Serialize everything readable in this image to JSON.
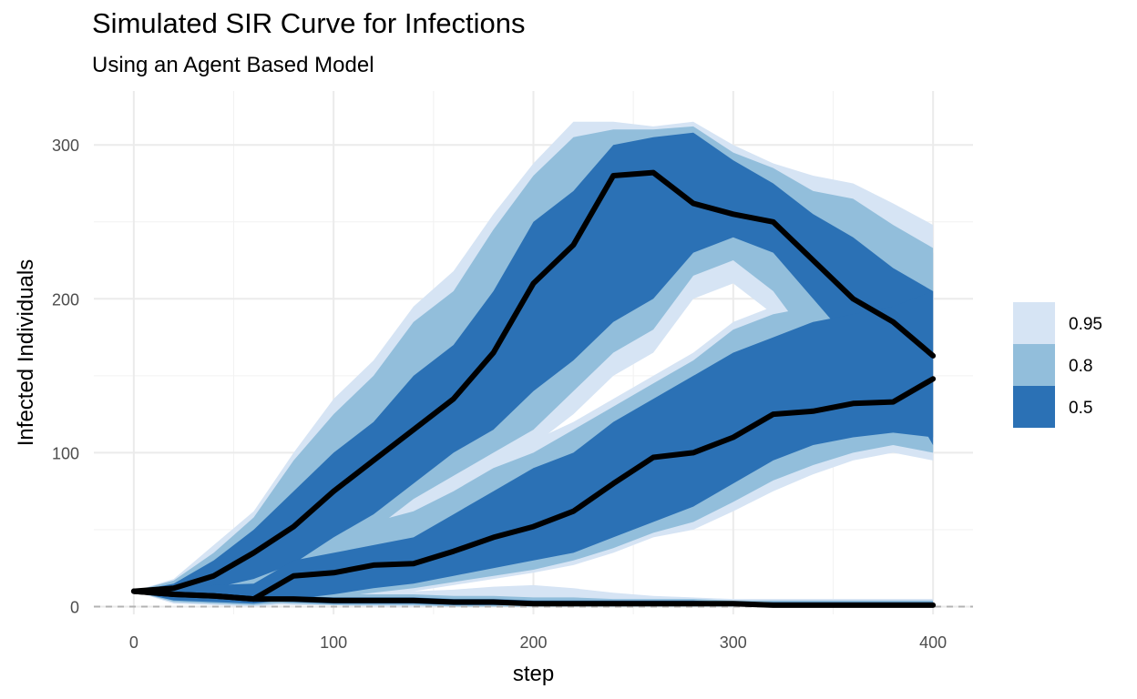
{
  "chart_data": {
    "type": "area",
    "title": "Simulated SIR Curve for Infections",
    "subtitle": "Using an Agent Based Model",
    "xlabel": "step",
    "ylabel": "Infected Individuals",
    "xlim": [
      -20,
      420
    ],
    "ylim": [
      -5,
      335
    ],
    "x_ticks": [
      0,
      100,
      200,
      300,
      400
    ],
    "y_ticks": [
      0,
      100,
      200,
      300
    ],
    "grid": true,
    "legend_position": "right",
    "reference_line": {
      "y": 0,
      "style": "dashed",
      "color": "#b3b3b3"
    },
    "bands": [
      {
        "level": "0.95",
        "color": "#d6e4f4"
      },
      {
        "level": "0.8",
        "color": "#92bedb"
      },
      {
        "level": "0.5",
        "color": "#2b71b5"
      }
    ],
    "series": [
      {
        "x": [
          0,
          20,
          40,
          60,
          80,
          100,
          120,
          140,
          160,
          180,
          200,
          220,
          240,
          260,
          280,
          300,
          320,
          340,
          360,
          380,
          400
        ],
        "median": [
          10,
          12,
          20,
          35,
          52,
          75,
          95,
          115,
          135,
          165,
          210,
          235,
          280,
          282,
          262,
          255,
          250,
          225,
          200,
          185,
          163
        ],
        "bands": {
          "0.5": {
            "lower": [
              10,
              8,
              12,
              18,
              28,
              45,
              60,
              80,
              100,
              115,
              140,
              160,
              185,
              200,
              230,
              240,
              230,
              200,
              170,
              150,
              105
            ],
            "upper": [
              10,
              15,
              30,
              50,
              75,
              100,
              120,
              150,
              170,
              205,
              250,
              270,
              300,
              305,
              308,
              290,
              275,
              255,
              240,
              220,
              205
            ]
          },
          "0.8": {
            "lower": [
              10,
              6,
              9,
              13,
              22,
              35,
              50,
              70,
              85,
              100,
              115,
              140,
              165,
              180,
              215,
              225,
              205,
              170,
              135,
              115,
              100
            ],
            "upper": [
              10,
              17,
              35,
              58,
              95,
              125,
              150,
              185,
              205,
              245,
              280,
              305,
              310,
              310,
              312,
              295,
              285,
              270,
              265,
              248,
              233
            ]
          },
          "0.95": {
            "lower": [
              10,
              5,
              7,
              11,
              18,
              30,
              45,
              60,
              75,
              90,
              105,
              125,
              150,
              165,
              200,
              210,
              190,
              160,
              120,
              105,
              95
            ],
            "upper": [
              10,
              18,
              40,
              62,
              100,
              135,
              160,
              195,
              218,
              255,
              288,
              315,
              315,
              312,
              315,
              300,
              288,
              280,
              275,
              262,
              248
            ]
          }
        }
      },
      {
        "x": [
          0,
          20,
          40,
          60,
          80,
          100,
          120,
          140,
          160,
          180,
          200,
          220,
          240,
          260,
          280,
          300,
          320,
          340,
          360,
          380,
          400
        ],
        "median": [
          10,
          8,
          7,
          5,
          20,
          22,
          27,
          28,
          36,
          45,
          52,
          62,
          80,
          97,
          100,
          110,
          125,
          127,
          132,
          133,
          148
        ],
        "bands": {
          "0.5": {
            "lower": [
              10,
              4,
              3,
              2,
              5,
              8,
              12,
              15,
              20,
              25,
              30,
              35,
              45,
              55,
              65,
              80,
              95,
              105,
              110,
              113,
              110
            ],
            "upper": [
              10,
              12,
              14,
              15,
              30,
              35,
              40,
              45,
              60,
              75,
              90,
              100,
              120,
              135,
              150,
              165,
              175,
              185,
              190,
              195,
              205
            ]
          },
          "0.8": {
            "lower": [
              10,
              3,
              2,
              1,
              3,
              6,
              9,
              12,
              16,
              20,
              24,
              30,
              38,
              48,
              55,
              68,
              82,
              92,
              100,
              105,
              100
            ],
            "upper": [
              10,
              14,
              16,
              18,
              35,
              45,
              55,
              62,
              75,
              90,
              100,
              115,
              130,
              145,
              160,
              180,
              190,
              195,
              200,
              215,
              230
            ]
          },
          "0.95": {
            "lower": [
              10,
              2,
              1,
              0,
              2,
              4,
              7,
              10,
              14,
              18,
              22,
              27,
              35,
              45,
              50,
              62,
              75,
              86,
              95,
              100,
              95
            ],
            "upper": [
              10,
              15,
              18,
              22,
              40,
              50,
              60,
              70,
              85,
              98,
              108,
              120,
              135,
              150,
              165,
              185,
              195,
              200,
              210,
              225,
              240
            ]
          }
        }
      },
      {
        "x": [
          0,
          20,
          40,
          60,
          80,
          100,
          120,
          140,
          160,
          180,
          200,
          220,
          240,
          260,
          280,
          300,
          320,
          340,
          360,
          380,
          400
        ],
        "median": [
          10,
          8,
          7,
          5,
          5,
          4,
          4,
          4,
          3,
          3,
          2,
          2,
          2,
          2,
          2,
          2,
          1,
          1,
          1,
          1,
          1
        ],
        "bands": {
          "0.5": {
            "lower": [
              10,
              6,
              5,
              4,
              3,
              2,
              2,
              2,
              1,
              1,
              1,
              1,
              1,
              1,
              1,
              1,
              0,
              0,
              0,
              0,
              0
            ],
            "upper": [
              10,
              10,
              9,
              8,
              7,
              6,
              6,
              6,
              5,
              5,
              4,
              4,
              4,
              4,
              4,
              3,
              3,
              3,
              3,
              3,
              3
            ]
          },
          "0.8": {
            "lower": [
              10,
              5,
              4,
              3,
              2,
              1,
              1,
              1,
              0,
              0,
              0,
              0,
              0,
              0,
              0,
              0,
              0,
              0,
              0,
              0,
              0
            ],
            "upper": [
              10,
              11,
              10,
              9,
              8,
              8,
              8,
              8,
              7,
              7,
              6,
              6,
              5,
              5,
              5,
              4,
              4,
              4,
              4,
              4,
              4
            ]
          },
          "0.95": {
            "lower": [
              10,
              4,
              3,
              2,
              1,
              1,
              0,
              0,
              0,
              0,
              0,
              0,
              0,
              0,
              0,
              0,
              0,
              0,
              0,
              0,
              0
            ],
            "upper": [
              10,
              12,
              11,
              10,
              9,
              9,
              9,
              10,
              11,
              13,
              14,
              12,
              9,
              7,
              6,
              5,
              5,
              5,
              5,
              5,
              5
            ]
          }
        }
      }
    ]
  }
}
